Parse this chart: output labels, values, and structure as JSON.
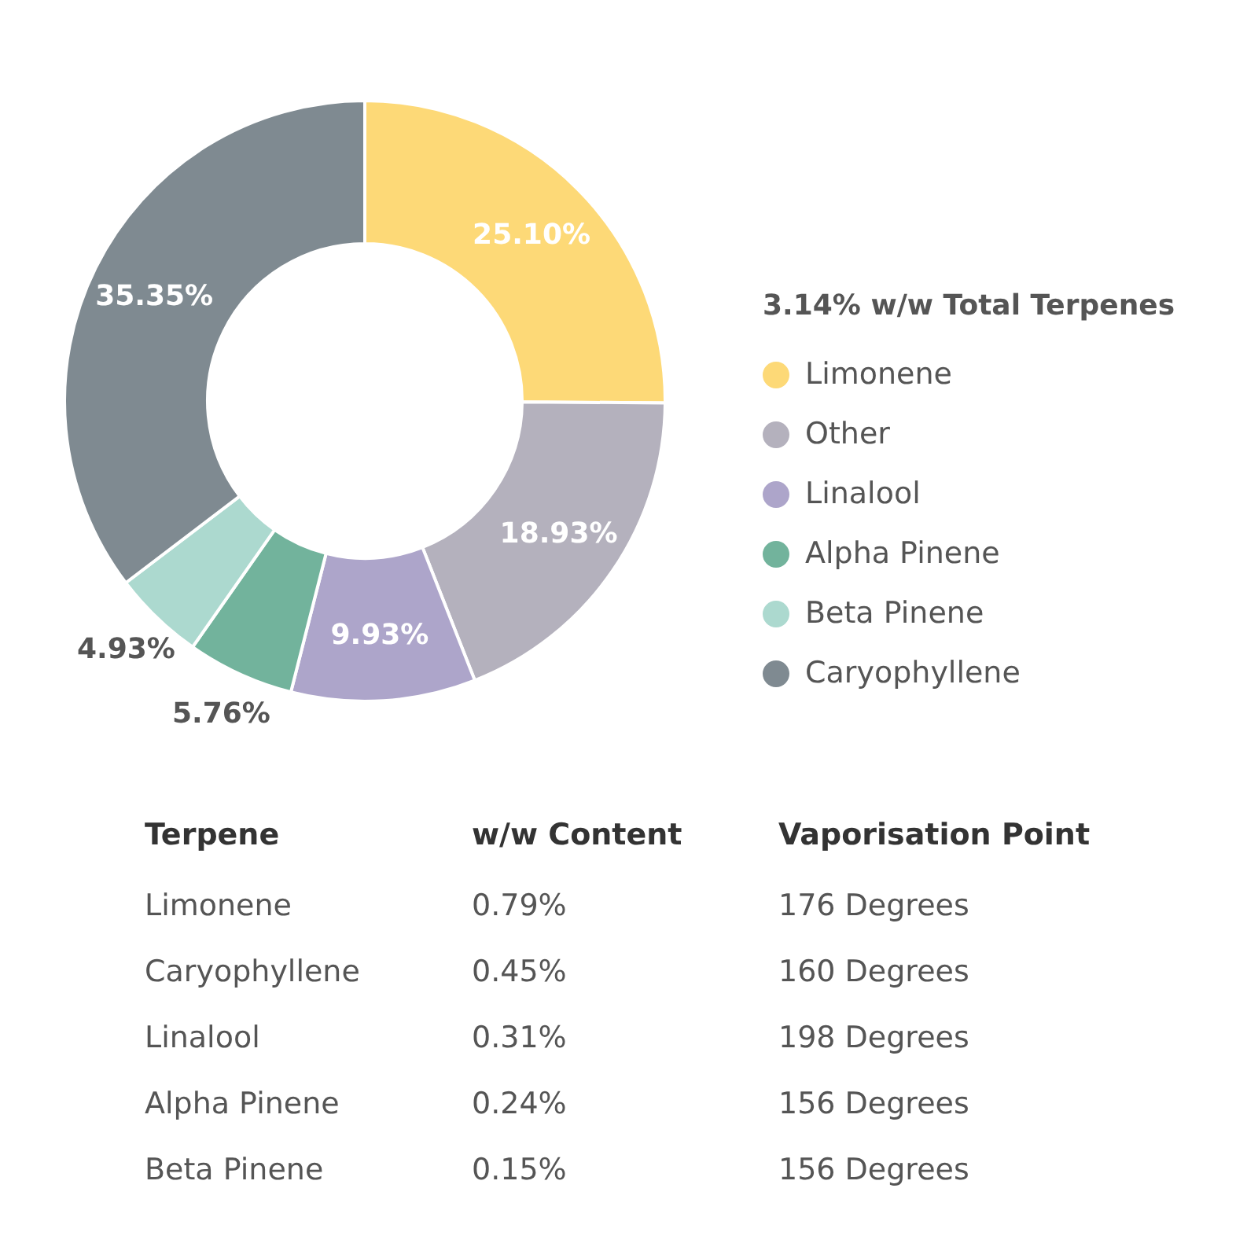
{
  "chart_data": {
    "type": "donut",
    "legend_title": "3.14% w/w Total Terpenes",
    "categories": [
      "Limonene",
      "Other",
      "Linalool",
      "Alpha Pinene",
      "Beta Pinene",
      "Caryophyllene"
    ],
    "values": [
      25.1,
      18.93,
      9.93,
      5.76,
      4.93,
      35.35
    ],
    "value_labels": [
      "25.10%",
      "18.93%",
      "9.93%",
      "5.76%",
      "4.93%",
      "35.35%"
    ],
    "colors": [
      "#fdd977",
      "#b4b1bd",
      "#ada5ca",
      "#72b39c",
      "#acd9cf",
      "#7f8a91"
    ],
    "legend": "right",
    "annotations": [
      "Terpene",
      "w/w Content",
      "Vaporisation Point",
      "Limonene",
      "0.79%",
      "176 Degrees",
      "Caryophyllene",
      "0.45%",
      "160 Degrees",
      "Linalool",
      "0.31%",
      "198 Degrees",
      "Alpha Pinene",
      "0.24%",
      "156 Degrees",
      "Beta Pinene",
      "0.15%",
      "156 Degrees"
    ]
  }
}
